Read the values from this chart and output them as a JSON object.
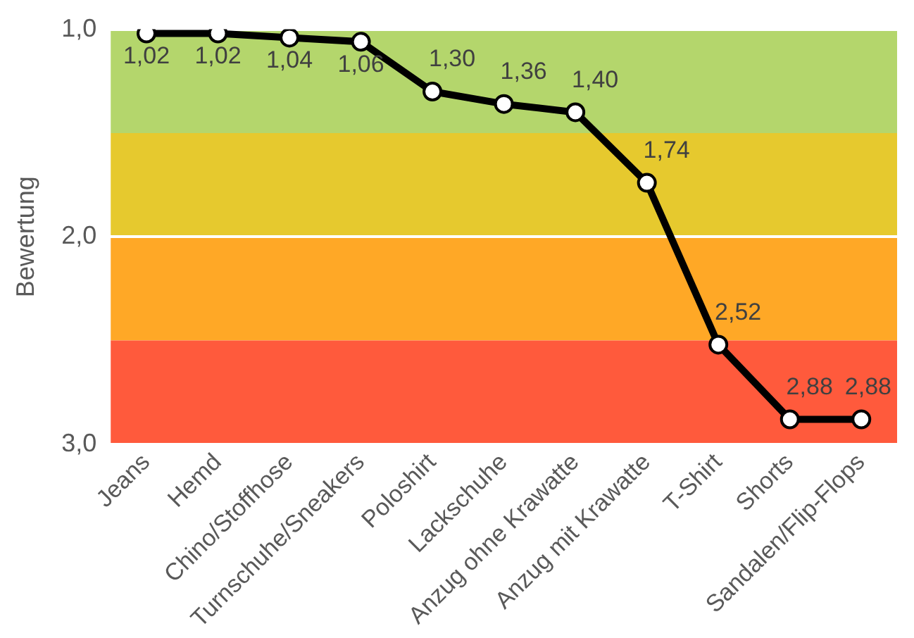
{
  "chart_data": {
    "type": "line",
    "ylabel": "Bewertung",
    "categories": [
      "Jeans",
      "Hemd",
      "Chino/Stoffhose",
      "Turnschuhe/Sneakers",
      "Poloshirt",
      "Lackschuhe",
      "Anzug ohne Krawatte",
      "Anzug mit Krawatte",
      "T-Shirt",
      "Shorts",
      "Sandalen/Flip-Flops"
    ],
    "series": [
      {
        "color": "#000000",
        "values": [
          1.02,
          1.02,
          1.04,
          1.06,
          1.3,
          1.36,
          1.4,
          1.74,
          2.52,
          2.88,
          2.88
        ],
        "value_labels": [
          "1,02",
          "1,02",
          "1,04",
          "1,06",
          "1,30",
          "1,36",
          "1,40",
          "1,74",
          "2,52",
          "2,88",
          "2,88"
        ]
      }
    ],
    "ylim": [
      3,
      1
    ],
    "yticks": [
      {
        "value": 1,
        "label": "1,0"
      },
      {
        "value": 2,
        "label": "2,0"
      },
      {
        "value": 3,
        "label": "3,0"
      }
    ],
    "bands": [
      {
        "axis": "y",
        "from": 1,
        "to": 1.5,
        "color": "#b4d66c"
      },
      {
        "axis": "y",
        "from": 1.5,
        "to": 2,
        "color": "#e6c92e"
      },
      {
        "axis": "y",
        "from": 2,
        "to": 2.5,
        "color": "#ffa826"
      },
      {
        "axis": "y",
        "from": 2.5,
        "to": 3,
        "color": "#ff5a3c"
      }
    ],
    "grid": "y",
    "legend": false,
    "marker": "circle",
    "line_style": "solid"
  }
}
